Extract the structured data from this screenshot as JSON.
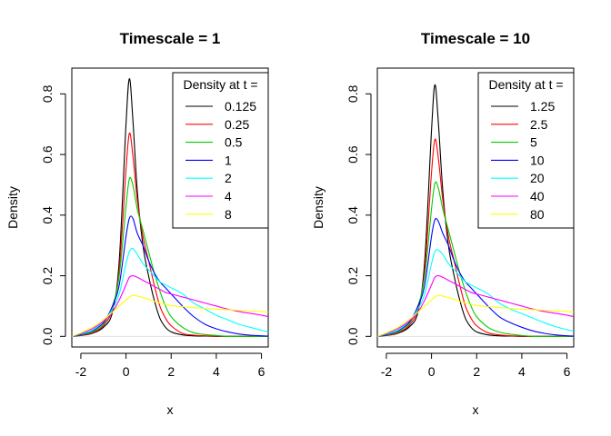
{
  "chart_data": [
    {
      "type": "line",
      "title": "Timescale = 1",
      "xlabel": "x",
      "ylabel": "Density",
      "xlim": [
        -2.4,
        6.3
      ],
      "ylim": [
        -0.035,
        0.885
      ],
      "xticks": [
        -2,
        0,
        2,
        4,
        6
      ],
      "xtick_labels": [
        "-2",
        "0",
        "2",
        "4",
        "6"
      ],
      "yticks": [
        0.0,
        0.2,
        0.4,
        0.6,
        0.8
      ],
      "ytick_labels": [
        "0.0",
        "0.2",
        "0.4",
        "0.6",
        "0.8"
      ],
      "legend_title": "Density at t =",
      "legend_position": "top-right",
      "grid": false,
      "x": [
        -2.4,
        -2.0,
        -1.5,
        -1.0,
        -0.6,
        -0.3,
        0.0,
        0.15,
        0.3,
        0.5,
        0.75,
        1.0,
        1.25,
        1.5,
        1.75,
        2.0,
        2.5,
        3.0,
        3.5,
        4.0,
        4.5,
        5.0,
        5.5,
        6.0,
        6.3
      ],
      "series": [
        {
          "name": "0.125",
          "color": "#000000",
          "values": [
            0.0,
            0.003,
            0.01,
            0.03,
            0.08,
            0.25,
            0.7,
            0.85,
            0.72,
            0.48,
            0.3,
            0.2,
            0.12,
            0.06,
            0.03,
            0.015,
            0.005,
            0.002,
            0.001,
            0.0,
            0.0,
            0.0,
            0.0,
            0.0,
            0.0
          ]
        },
        {
          "name": "0.25",
          "color": "#ff0000",
          "values": [
            0.0,
            0.004,
            0.012,
            0.035,
            0.09,
            0.22,
            0.55,
            0.67,
            0.6,
            0.45,
            0.33,
            0.25,
            0.17,
            0.1,
            0.06,
            0.035,
            0.01,
            0.004,
            0.002,
            0.001,
            0.0,
            0.0,
            0.0,
            0.0,
            0.0
          ]
        },
        {
          "name": "0.5",
          "color": "#00cd00",
          "values": [
            0.0,
            0.005,
            0.015,
            0.04,
            0.1,
            0.2,
            0.43,
            0.52,
            0.5,
            0.42,
            0.35,
            0.28,
            0.21,
            0.15,
            0.1,
            0.065,
            0.03,
            0.012,
            0.006,
            0.003,
            0.0,
            0.0,
            0.0,
            0.0,
            0.0
          ]
        },
        {
          "name": "1",
          "color": "#0000ff",
          "values": [
            0.0,
            0.006,
            0.018,
            0.045,
            0.1,
            0.17,
            0.33,
            0.39,
            0.39,
            0.34,
            0.3,
            0.25,
            0.21,
            0.18,
            0.16,
            0.14,
            0.1,
            0.065,
            0.04,
            0.025,
            0.015,
            0.008,
            0.004,
            0.002,
            0.001
          ]
        },
        {
          "name": "2",
          "color": "#00ffff",
          "values": [
            0.0,
            0.008,
            0.02,
            0.05,
            0.09,
            0.14,
            0.24,
            0.28,
            0.29,
            0.27,
            0.24,
            0.22,
            0.2,
            0.18,
            0.17,
            0.16,
            0.14,
            0.11,
            0.09,
            0.07,
            0.055,
            0.04,
            0.03,
            0.02,
            0.015
          ]
        },
        {
          "name": "4",
          "color": "#ff00ff",
          "values": [
            0.0,
            0.01,
            0.025,
            0.05,
            0.08,
            0.12,
            0.17,
            0.195,
            0.2,
            0.195,
            0.185,
            0.175,
            0.165,
            0.155,
            0.145,
            0.14,
            0.13,
            0.12,
            0.11,
            0.1,
            0.09,
            0.082,
            0.076,
            0.07,
            0.065
          ]
        },
        {
          "name": "8",
          "color": "#ffff00",
          "values": [
            0.0,
            0.012,
            0.03,
            0.055,
            0.08,
            0.1,
            0.12,
            0.13,
            0.135,
            0.133,
            0.128,
            0.122,
            0.116,
            0.11,
            0.106,
            0.102,
            0.098,
            0.095,
            0.092,
            0.09,
            0.088,
            0.086,
            0.084,
            0.082,
            0.08
          ]
        }
      ]
    },
    {
      "type": "line",
      "title": "Timescale = 10",
      "xlabel": "x",
      "ylabel": "Density",
      "xlim": [
        -2.4,
        6.3
      ],
      "ylim": [
        -0.035,
        0.885
      ],
      "xticks": [
        -2,
        0,
        2,
        4,
        6
      ],
      "xtick_labels": [
        "-2",
        "0",
        "2",
        "4",
        "6"
      ],
      "yticks": [
        0.0,
        0.2,
        0.4,
        0.6,
        0.8
      ],
      "ytick_labels": [
        "0.0",
        "0.2",
        "0.4",
        "0.6",
        "0.8"
      ],
      "legend_title": "Density at t =",
      "legend_position": "top-right",
      "grid": false,
      "x": [
        -2.4,
        -2.0,
        -1.5,
        -1.0,
        -0.6,
        -0.3,
        0.0,
        0.15,
        0.3,
        0.5,
        0.75,
        1.0,
        1.25,
        1.5,
        1.75,
        2.0,
        2.5,
        3.0,
        3.5,
        4.0,
        4.5,
        5.0,
        5.5,
        6.0,
        6.3
      ],
      "series": [
        {
          "name": "1.25",
          "color": "#000000",
          "values": [
            0.0,
            0.003,
            0.01,
            0.03,
            0.08,
            0.25,
            0.68,
            0.83,
            0.71,
            0.48,
            0.3,
            0.2,
            0.12,
            0.06,
            0.03,
            0.015,
            0.005,
            0.002,
            0.001,
            0.0,
            0.0,
            0.0,
            0.0,
            0.0,
            0.0
          ]
        },
        {
          "name": "2.5",
          "color": "#ff0000",
          "values": [
            0.0,
            0.004,
            0.012,
            0.035,
            0.09,
            0.22,
            0.54,
            0.65,
            0.59,
            0.45,
            0.33,
            0.25,
            0.17,
            0.1,
            0.06,
            0.035,
            0.012,
            0.005,
            0.002,
            0.001,
            0.0,
            0.0,
            0.0,
            0.0,
            0.0
          ]
        },
        {
          "name": "5",
          "color": "#00cd00",
          "values": [
            0.0,
            0.005,
            0.015,
            0.04,
            0.1,
            0.2,
            0.42,
            0.505,
            0.49,
            0.42,
            0.35,
            0.28,
            0.21,
            0.15,
            0.1,
            0.065,
            0.03,
            0.014,
            0.007,
            0.003,
            0.0,
            0.0,
            0.0,
            0.0,
            0.0
          ]
        },
        {
          "name": "10",
          "color": "#0000ff",
          "values": [
            0.0,
            0.006,
            0.018,
            0.045,
            0.1,
            0.17,
            0.33,
            0.385,
            0.38,
            0.34,
            0.3,
            0.25,
            0.21,
            0.18,
            0.16,
            0.14,
            0.1,
            0.065,
            0.045,
            0.03,
            0.018,
            0.01,
            0.005,
            0.002,
            0.001
          ]
        },
        {
          "name": "20",
          "color": "#00ffff",
          "values": [
            0.0,
            0.008,
            0.02,
            0.05,
            0.09,
            0.14,
            0.24,
            0.28,
            0.285,
            0.27,
            0.24,
            0.22,
            0.2,
            0.18,
            0.17,
            0.16,
            0.14,
            0.11,
            0.09,
            0.075,
            0.06,
            0.045,
            0.032,
            0.022,
            0.017
          ]
        },
        {
          "name": "40",
          "color": "#ff00ff",
          "values": [
            0.0,
            0.01,
            0.025,
            0.05,
            0.08,
            0.12,
            0.17,
            0.195,
            0.2,
            0.195,
            0.185,
            0.175,
            0.165,
            0.155,
            0.145,
            0.14,
            0.13,
            0.12,
            0.11,
            0.1,
            0.09,
            0.082,
            0.076,
            0.07,
            0.065
          ]
        },
        {
          "name": "80",
          "color": "#ffff00",
          "values": [
            0.0,
            0.012,
            0.03,
            0.055,
            0.08,
            0.1,
            0.12,
            0.13,
            0.135,
            0.133,
            0.128,
            0.122,
            0.116,
            0.11,
            0.106,
            0.102,
            0.098,
            0.095,
            0.092,
            0.09,
            0.088,
            0.086,
            0.084,
            0.082,
            0.08
          ]
        }
      ]
    }
  ]
}
